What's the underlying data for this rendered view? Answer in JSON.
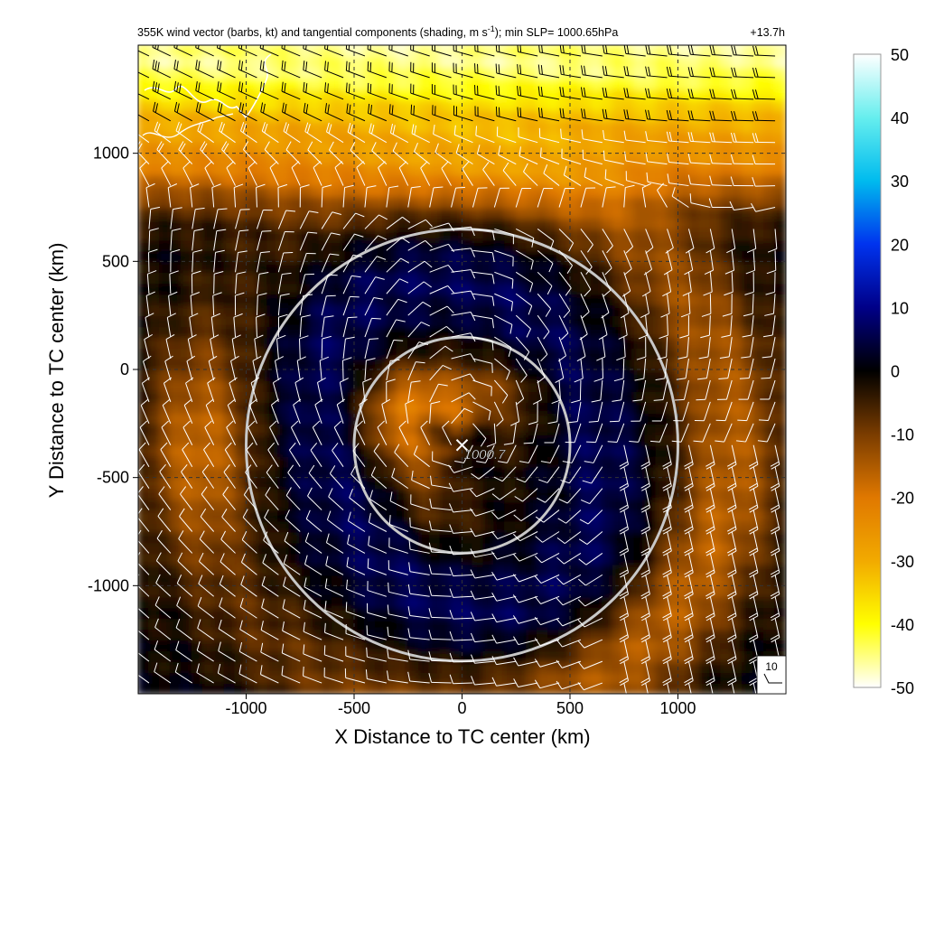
{
  "chart_data": {
    "type": "heatmap",
    "title_parts": {
      "pre": "355K wind vector (barbs, kt) and tangential components (shading, m s",
      "sup": "-1",
      "post": "); min SLP= 1000.65hPa",
      "time": "+13.7h"
    },
    "xlabel": "X Distance to TC center (km)",
    "ylabel": "Y Distance to TC center (km)",
    "xlim": [
      -1500,
      1500
    ],
    "ylim": [
      -1500,
      1500
    ],
    "xticks": [
      -1000,
      -500,
      0,
      500,
      1000
    ],
    "yticks": [
      -1000,
      -500,
      0,
      500,
      1000
    ],
    "xtick_labels": [
      "-1000",
      "-500",
      "0",
      "500",
      "1000"
    ],
    "ytick_labels": [
      "-1000",
      "-500",
      "0",
      "500",
      "1000"
    ],
    "grid": true,
    "colorbar": {
      "min": -50,
      "max": 50,
      "ticks": [
        50,
        40,
        30,
        20,
        10,
        0,
        -10,
        -20,
        -30,
        -40,
        -50
      ],
      "tick_labels": [
        "50",
        "40",
        "30",
        "20",
        "10",
        "0",
        "-10",
        "-20",
        "-30",
        "-40",
        "-50"
      ],
      "stops": [
        {
          "value": 50,
          "color": "#ffffff"
        },
        {
          "value": 40,
          "color": "#66eeee"
        },
        {
          "value": 30,
          "color": "#00bbee"
        },
        {
          "value": 20,
          "color": "#0033ee"
        },
        {
          "value": 10,
          "color": "#000088"
        },
        {
          "value": 0,
          "color": "#000000"
        },
        {
          "value": -10,
          "color": "#7a3c00"
        },
        {
          "value": -20,
          "color": "#e07800"
        },
        {
          "value": -30,
          "color": "#f2aa00"
        },
        {
          "value": -40,
          "color": "#ffff00"
        },
        {
          "value": -50,
          "color": "#ffffff"
        }
      ]
    },
    "tc_center": {
      "x": 0,
      "y": -350,
      "label": "1000.7"
    },
    "rings_km": [
      500,
      1000
    ],
    "barb_reference": {
      "label": "10",
      "speed_kt": 10
    },
    "field_description": {
      "northern_band_min": -45,
      "southern_swirl_min": -20,
      "ring_zone_value": 6
    }
  },
  "colors": {
    "ring": "#c8c8c8",
    "barb": "#ffffff",
    "barb_dark": "#000000",
    "grid": "#333333"
  }
}
